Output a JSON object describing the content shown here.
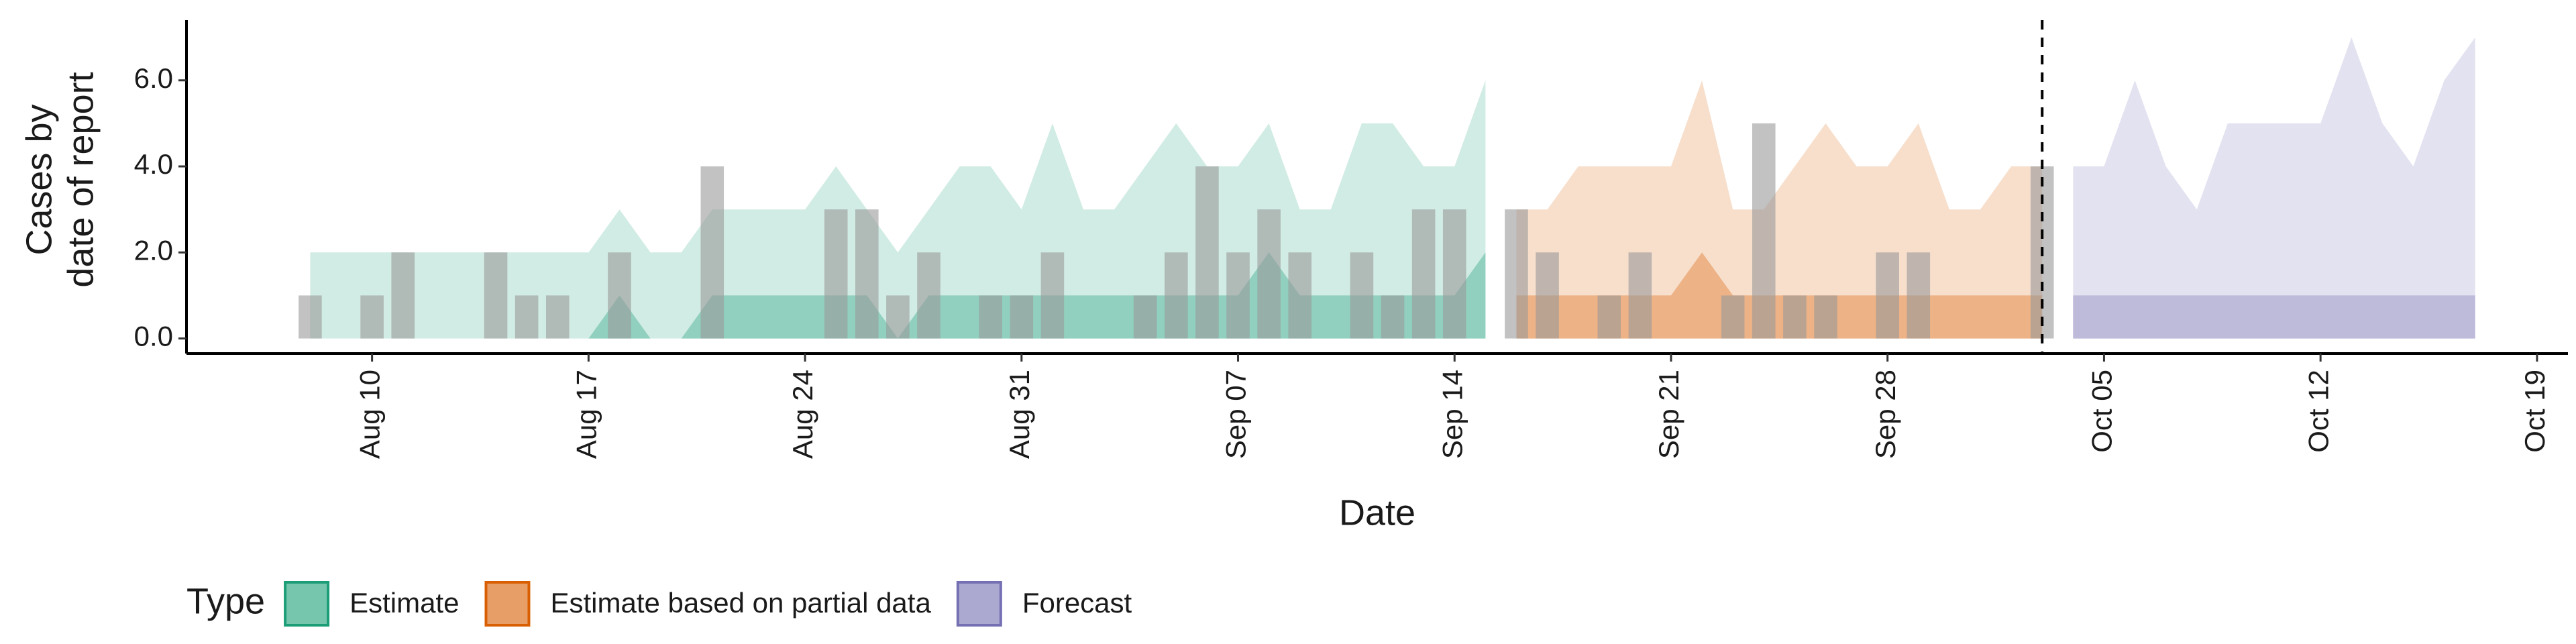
{
  "chart_data": {
    "type": "ribbon",
    "xlabel": "Date",
    "ylabel": [
      "Cases by",
      "date of report"
    ],
    "legend_title": "Type",
    "legend_position": "bottom",
    "xlim": [
      "Aug 04",
      "Oct 20"
    ],
    "xticks": [
      "Aug 10",
      "Aug 17",
      "Aug 24",
      "Aug 31",
      "Sep 07",
      "Sep 14",
      "Sep 21",
      "Sep 28",
      "Oct 05",
      "Oct 12",
      "Oct 19"
    ],
    "ylim": [
      -0.35,
      7.4
    ],
    "yticks": [
      {
        "value": 0,
        "label": "0.0"
      },
      {
        "value": 2,
        "label": "2.0"
      },
      {
        "value": 4,
        "label": "4.0"
      },
      {
        "value": 6,
        "label": "6.0"
      }
    ],
    "vline": "Oct 03",
    "observed": {
      "color": "#999999",
      "x": [
        "Aug 08",
        "Aug 10",
        "Aug 11",
        "Aug 14",
        "Aug 15",
        "Aug 16",
        "Aug 18",
        "Aug 21",
        "Aug 25",
        "Aug 26",
        "Aug 27",
        "Aug 28",
        "Aug 30",
        "Aug 31",
        "Sep 01",
        "Sep 04",
        "Sep 05",
        "Sep 06",
        "Sep 07",
        "Sep 08",
        "Sep 09",
        "Sep 11",
        "Sep 12",
        "Sep 13",
        "Sep 14",
        "Sep 16",
        "Sep 17",
        "Sep 19",
        "Sep 20",
        "Sep 23",
        "Sep 24",
        "Sep 25",
        "Sep 26",
        "Sep 28",
        "Sep 29",
        "Oct 03"
      ],
      "values": [
        1,
        1,
        2,
        2,
        1,
        1,
        2,
        4,
        3,
        3,
        1,
        2,
        1,
        1,
        2,
        1,
        2,
        4,
        2,
        3,
        2,
        2,
        1,
        3,
        3,
        3,
        2,
        1,
        2,
        1,
        5,
        1,
        1,
        2,
        2,
        4
      ]
    },
    "series": [
      {
        "name": "Estimate",
        "color": "#1b9e77",
        "x": [
          "Aug 08",
          "Aug 09",
          "Aug 10",
          "Aug 11",
          "Aug 12",
          "Aug 13",
          "Aug 14",
          "Aug 15",
          "Aug 16",
          "Aug 17",
          "Aug 18",
          "Aug 19",
          "Aug 20",
          "Aug 21",
          "Aug 22",
          "Aug 23",
          "Aug 24",
          "Aug 25",
          "Aug 26",
          "Aug 27",
          "Aug 28",
          "Aug 29",
          "Aug 30",
          "Aug 31",
          "Sep 01",
          "Sep 02",
          "Sep 03",
          "Sep 04",
          "Sep 05",
          "Sep 06",
          "Sep 07",
          "Sep 08",
          "Sep 09",
          "Sep 10",
          "Sep 11",
          "Sep 12",
          "Sep 13",
          "Sep 14",
          "Sep 15"
        ],
        "upper90": [
          2,
          2,
          2,
          2,
          2,
          2,
          2,
          2,
          2,
          2,
          3,
          2,
          2,
          3,
          3,
          3,
          3,
          4,
          3,
          2,
          3,
          4,
          4,
          3,
          5,
          3,
          3,
          4,
          5,
          4,
          4,
          5,
          3,
          3,
          5,
          5,
          4,
          4,
          6
        ],
        "lower90": [
          0,
          0,
          0,
          0,
          0,
          0,
          0,
          0,
          0,
          0,
          0,
          0,
          0,
          0,
          0,
          0,
          0,
          0,
          0,
          0,
          0,
          0,
          0,
          0,
          0,
          0,
          0,
          0,
          0,
          0,
          0,
          0,
          0,
          0,
          0,
          0,
          0,
          0,
          0
        ],
        "upper50": [
          0,
          0,
          0,
          0,
          0,
          0,
          0,
          0,
          0,
          0,
          1,
          0,
          0,
          1,
          1,
          1,
          1,
          1,
          1,
          0,
          1,
          1,
          1,
          1,
          1,
          1,
          1,
          1,
          1,
          1,
          1,
          2,
          1,
          1,
          1,
          1,
          1,
          1,
          2
        ],
        "lower50": [
          0,
          0,
          0,
          0,
          0,
          0,
          0,
          0,
          0,
          0,
          0,
          0,
          0,
          0,
          0,
          0,
          0,
          0,
          0,
          0,
          0,
          0,
          0,
          0,
          0,
          0,
          0,
          0,
          0,
          0,
          0,
          0,
          0,
          0,
          0,
          0,
          0,
          0,
          0
        ]
      },
      {
        "name": "Estimate based on partial data",
        "color": "#d95f02",
        "x": [
          "Sep 16",
          "Sep 17",
          "Sep 18",
          "Sep 19",
          "Sep 20",
          "Sep 21",
          "Sep 22",
          "Sep 23",
          "Sep 24",
          "Sep 25",
          "Sep 26",
          "Sep 27",
          "Sep 28",
          "Sep 29",
          "Sep 30",
          "Oct 01",
          "Oct 02",
          "Oct 03"
        ],
        "upper90": [
          3,
          3,
          4,
          4,
          4,
          4,
          6,
          3,
          3,
          4,
          5,
          4,
          4,
          5,
          3,
          3,
          4,
          4
        ],
        "lower90": [
          0,
          0,
          0,
          0,
          0,
          0,
          0,
          0,
          0,
          0,
          0,
          0,
          0,
          0,
          0,
          0,
          0,
          0
        ],
        "upper50": [
          1,
          1,
          1,
          1,
          1,
          1,
          2,
          1,
          1,
          1,
          1,
          1,
          1,
          1,
          1,
          1,
          1,
          1
        ],
        "lower50": [
          0,
          0,
          0,
          0,
          0,
          0,
          0,
          0,
          0,
          0,
          0,
          0,
          0,
          0,
          0,
          0,
          0,
          0
        ]
      },
      {
        "name": "Forecast",
        "color": "#7570b3",
        "x": [
          "Oct 04",
          "Oct 05",
          "Oct 06",
          "Oct 07",
          "Oct 08",
          "Oct 09",
          "Oct 10",
          "Oct 11",
          "Oct 12",
          "Oct 13",
          "Oct 14",
          "Oct 15",
          "Oct 16",
          "Oct 17"
        ],
        "upper90": [
          4,
          4,
          6,
          4,
          3,
          5,
          5,
          5,
          5,
          7,
          5,
          4,
          6,
          7
        ],
        "lower90": [
          0,
          0,
          0,
          0,
          0,
          0,
          0,
          0,
          0,
          0,
          0,
          0,
          0,
          0
        ],
        "upper50": [
          1,
          1,
          1,
          1,
          1,
          1,
          1,
          1,
          1,
          1,
          1,
          1,
          1,
          1
        ],
        "lower50": [
          0,
          0,
          0,
          0,
          0,
          0,
          0,
          0,
          0,
          0,
          0,
          0,
          0,
          0
        ]
      }
    ]
  }
}
